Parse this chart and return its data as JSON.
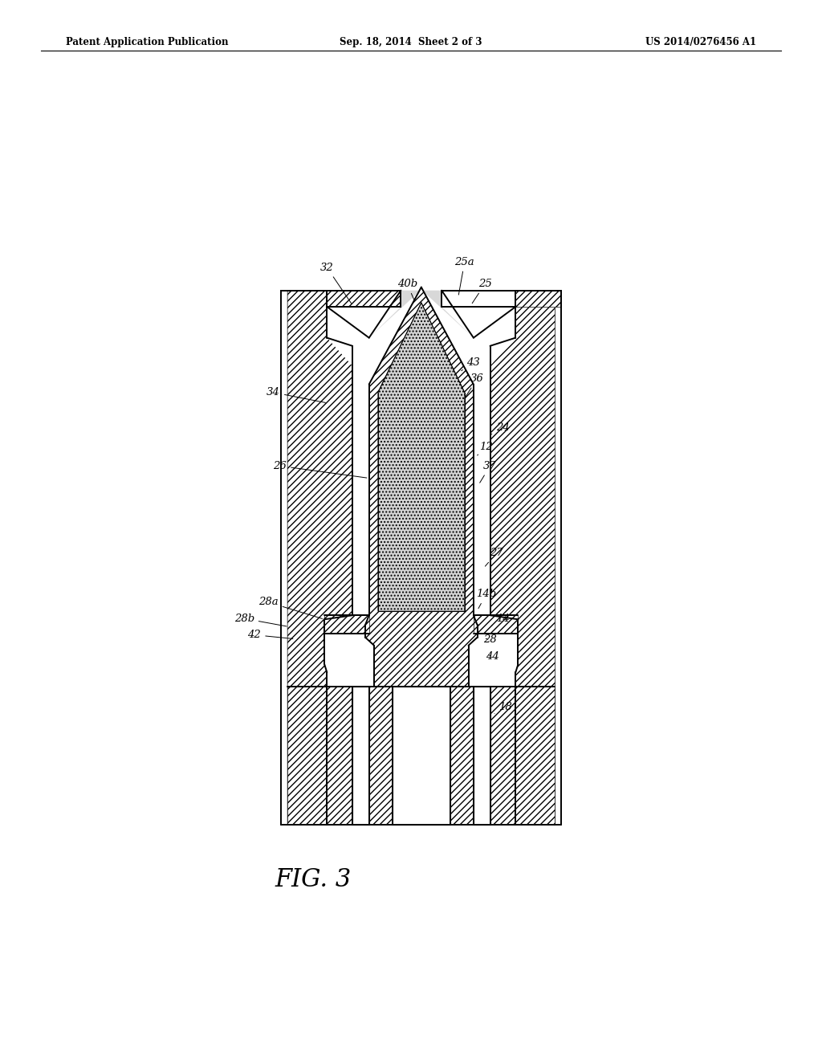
{
  "header_left": "Patent Application Publication",
  "header_center": "Sep. 18, 2014  Sheet 2 of 3",
  "header_right": "US 2014/0276456 A1",
  "figure_label": "FIG. 3",
  "bg_color": "#ffffff",
  "line_color": "#000000",
  "hatch_color": "#000000",
  "label_color": "#000000"
}
